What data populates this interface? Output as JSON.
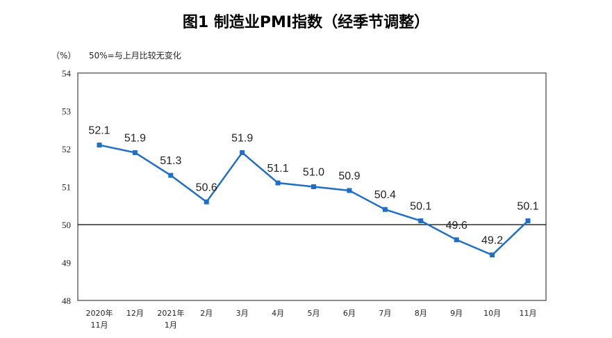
{
  "chart_data": {
    "type": "line",
    "title": "图1  制造业PMI指数（经季节调整）",
    "ylabel": "（%）",
    "annotation": "50%=与上月比较无变化",
    "categories": [
      [
        "2020年",
        "11月"
      ],
      [
        "12月"
      ],
      [
        "2021年",
        "1月"
      ],
      [
        "2月"
      ],
      [
        "3月"
      ],
      [
        "4月"
      ],
      [
        "5月"
      ],
      [
        "6月"
      ],
      [
        "7月"
      ],
      [
        "8月"
      ],
      [
        "9月"
      ],
      [
        "10月"
      ],
      [
        "11月"
      ]
    ],
    "values": [
      52.1,
      51.9,
      51.3,
      50.6,
      51.9,
      51.1,
      51.0,
      50.9,
      50.4,
      50.1,
      49.6,
      49.2,
      50.1
    ],
    "data_labels": [
      "52.1",
      "51.9",
      "51.3",
      "50.6",
      "51.9",
      "51.1",
      "51.0",
      "50.9",
      "50.4",
      "50.1",
      "49.6",
      "49.2",
      "50.1"
    ],
    "ylim": [
      48,
      54
    ],
    "yticks": [
      48,
      49,
      50,
      51,
      52,
      53,
      54
    ],
    "reference_line": 50,
    "grid": false,
    "legend": "none",
    "line_color": "#1f6fc9"
  }
}
